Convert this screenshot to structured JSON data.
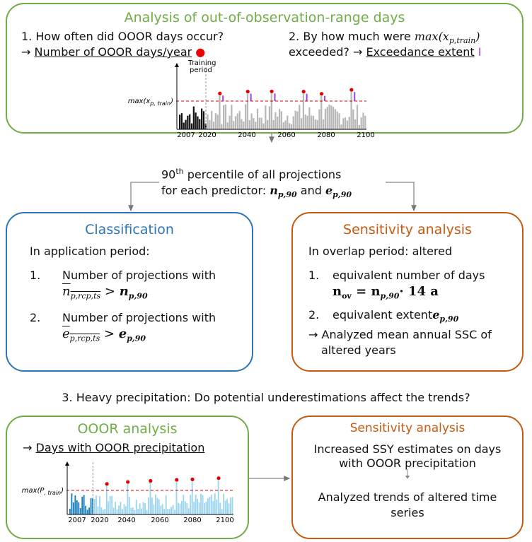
{
  "top_box": {
    "title": "Analysis of out-of-observation-range days",
    "question_1": "1. How often did OOOR days occur?",
    "arrow": "→",
    "answer_1": "Number of OOOR days/year",
    "question_2_pre": "2. By how much were",
    "math_max": "max(x",
    "math_sub": "p,train",
    "math_close": ")",
    "question_2_post": "exceeded? →",
    "answer_2": "Exceedance extent",
    "chart": {
      "threshold_label": "max(x",
      "threshold_sub": "p, train",
      "threshold_close": ")",
      "training_label_1": "Training",
      "training_label_2": "period",
      "x_labels": [
        "2007",
        "2020",
        "2040",
        "2060",
        "2080",
        "2100"
      ]
    }
  },
  "middle": {
    "line_1_num": "90",
    "line_1_sup": "th",
    "line_1_text": " percentile of all projections",
    "line_2_text": "for each predictor: ",
    "n": "n",
    "n_sub": "p,90",
    "and": " and ",
    "e": "e",
    "e_sub": "p,90"
  },
  "classification": {
    "title": "Classification",
    "intro": "In application period:",
    "items": [
      {
        "number": "1.",
        "text": "Number of projections with",
        "var": "n",
        "var_sub": "p,rcp,ts",
        "op": " > ",
        "ref": "n",
        "ref_sub": "p,90"
      },
      {
        "number": "2.",
        "text": "Number of projections with",
        "var": "e",
        "var_sub": "p,rcp,ts",
        "op": " > ",
        "ref": "e",
        "ref_sub": "p,90"
      }
    ]
  },
  "sensitivity": {
    "title": "Sensitivity analysis",
    "intro": "In overlap period: altered",
    "item_1_number": "1.",
    "item_1_text": "equivalent number of days",
    "f_n": "n",
    "f_n_sub": "ov",
    "f_eq": " = ",
    "f_n2": "n",
    "f_n2_sub": "p,90",
    "f_rest": "· 14 a",
    "item_2_number": "2.",
    "item_2_text": "equivalent extent",
    "item_2_var": "e",
    "item_2_sub": "p,90",
    "result_1": "→ Analyzed mean annual SSC of",
    "result_2": "altered years"
  },
  "heading_3": "3. Heavy precipitation: Do potential underestimations affect the trends?",
  "ooor_box": {
    "title": "OOOR analysis",
    "arrow": "→",
    "text": "Days with OOOR precipitation",
    "chart": {
      "threshold_label": "max(P",
      "threshold_sub": ", train",
      "threshold_close": ")",
      "x_labels": [
        "2007",
        "2020",
        "2040",
        "2060",
        "2080",
        "2100"
      ]
    }
  },
  "sensitivity_2": {
    "title": "Sensitivity analysis",
    "line_1": "Increased SSY estimates on days",
    "line_2": "with OOOR precipitation",
    "line_3": "Analyzed trends of altered time",
    "line_4": "series"
  }
}
